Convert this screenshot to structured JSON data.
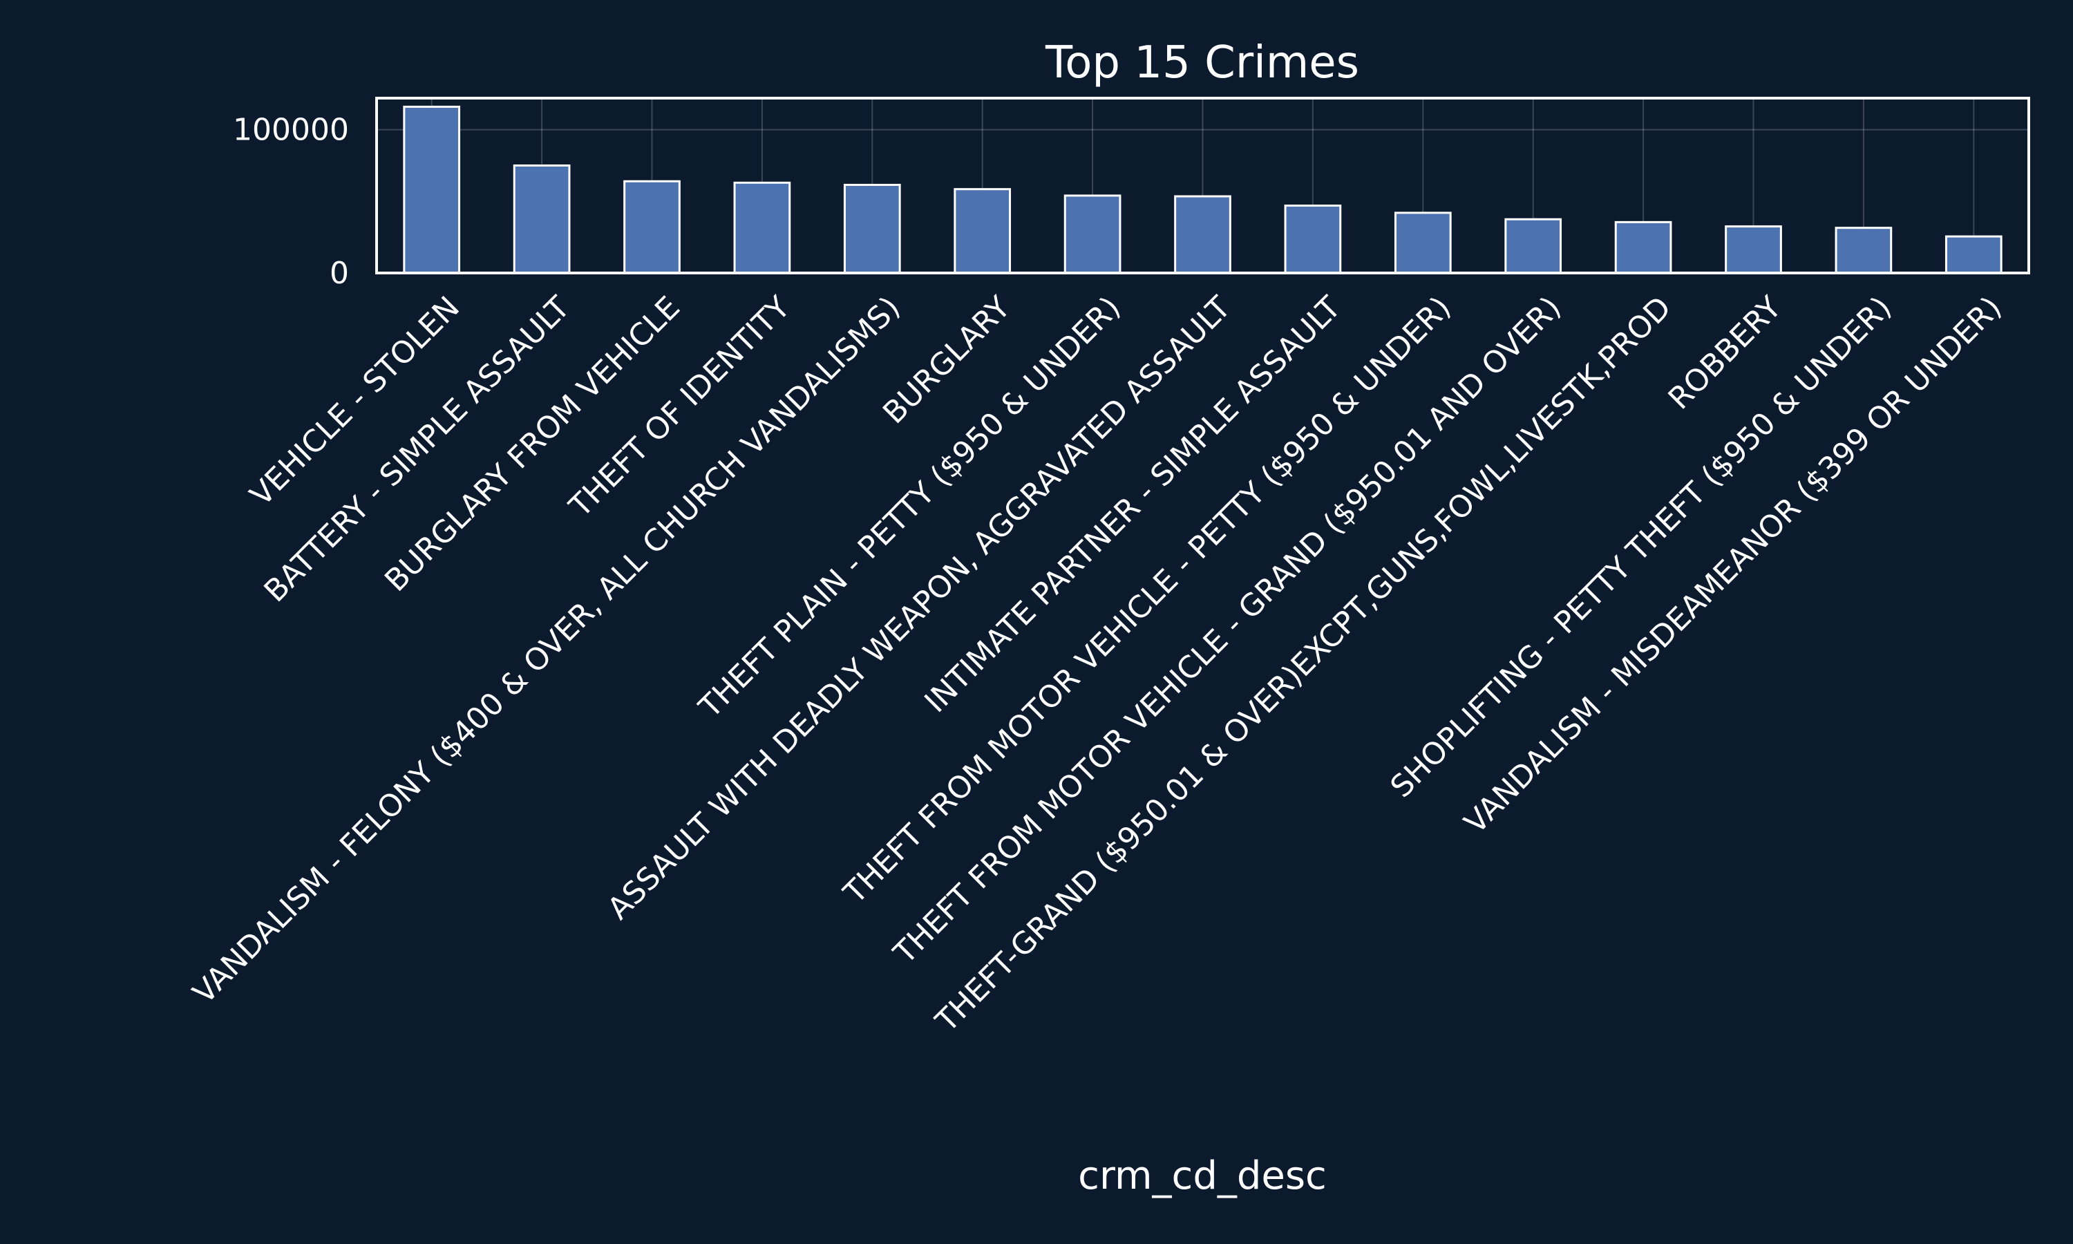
{
  "chart_data": {
    "type": "bar",
    "title": "Top 15 Crimes",
    "xlabel": "crm_cd_desc",
    "ylabel": "",
    "ylim": [
      0,
      122000
    ],
    "yticks": [
      0,
      100000
    ],
    "grid": true,
    "legend": "none",
    "bar_color": "#4c72b0",
    "edge_color": "#ffffff",
    "background_color": "#0b1a2c",
    "categories": [
      "VEHICLE - STOLEN",
      "BATTERY - SIMPLE ASSAULT",
      "BURGLARY FROM VEHICLE",
      "THEFT OF IDENTITY",
      "VANDALISM - FELONY ($400 & OVER, ALL CHURCH VANDALISMS)",
      "BURGLARY",
      "THEFT PLAIN - PETTY ($950 & UNDER)",
      "ASSAULT WITH DEADLY WEAPON, AGGRAVATED ASSAULT",
      "INTIMATE PARTNER - SIMPLE ASSAULT",
      "THEFT FROM MOTOR VEHICLE - PETTY ($950 & UNDER)",
      "THEFT FROM MOTOR VEHICLE - GRAND ($950.01 AND OVER)",
      "THEFT-GRAND ($950.01 & OVER)EXCPT,GUNS,FOWL,LIVESTK,PROD",
      "ROBBERY",
      "SHOPLIFTING - PETTY THEFT ($950 & UNDER)",
      "VANDALISM - MISDEAMEANOR ($399 OR UNDER)"
    ],
    "values": [
      116000,
      75000,
      64000,
      63000,
      61500,
      58500,
      54000,
      53500,
      47000,
      42000,
      37500,
      35500,
      32500,
      31500,
      25500
    ]
  }
}
